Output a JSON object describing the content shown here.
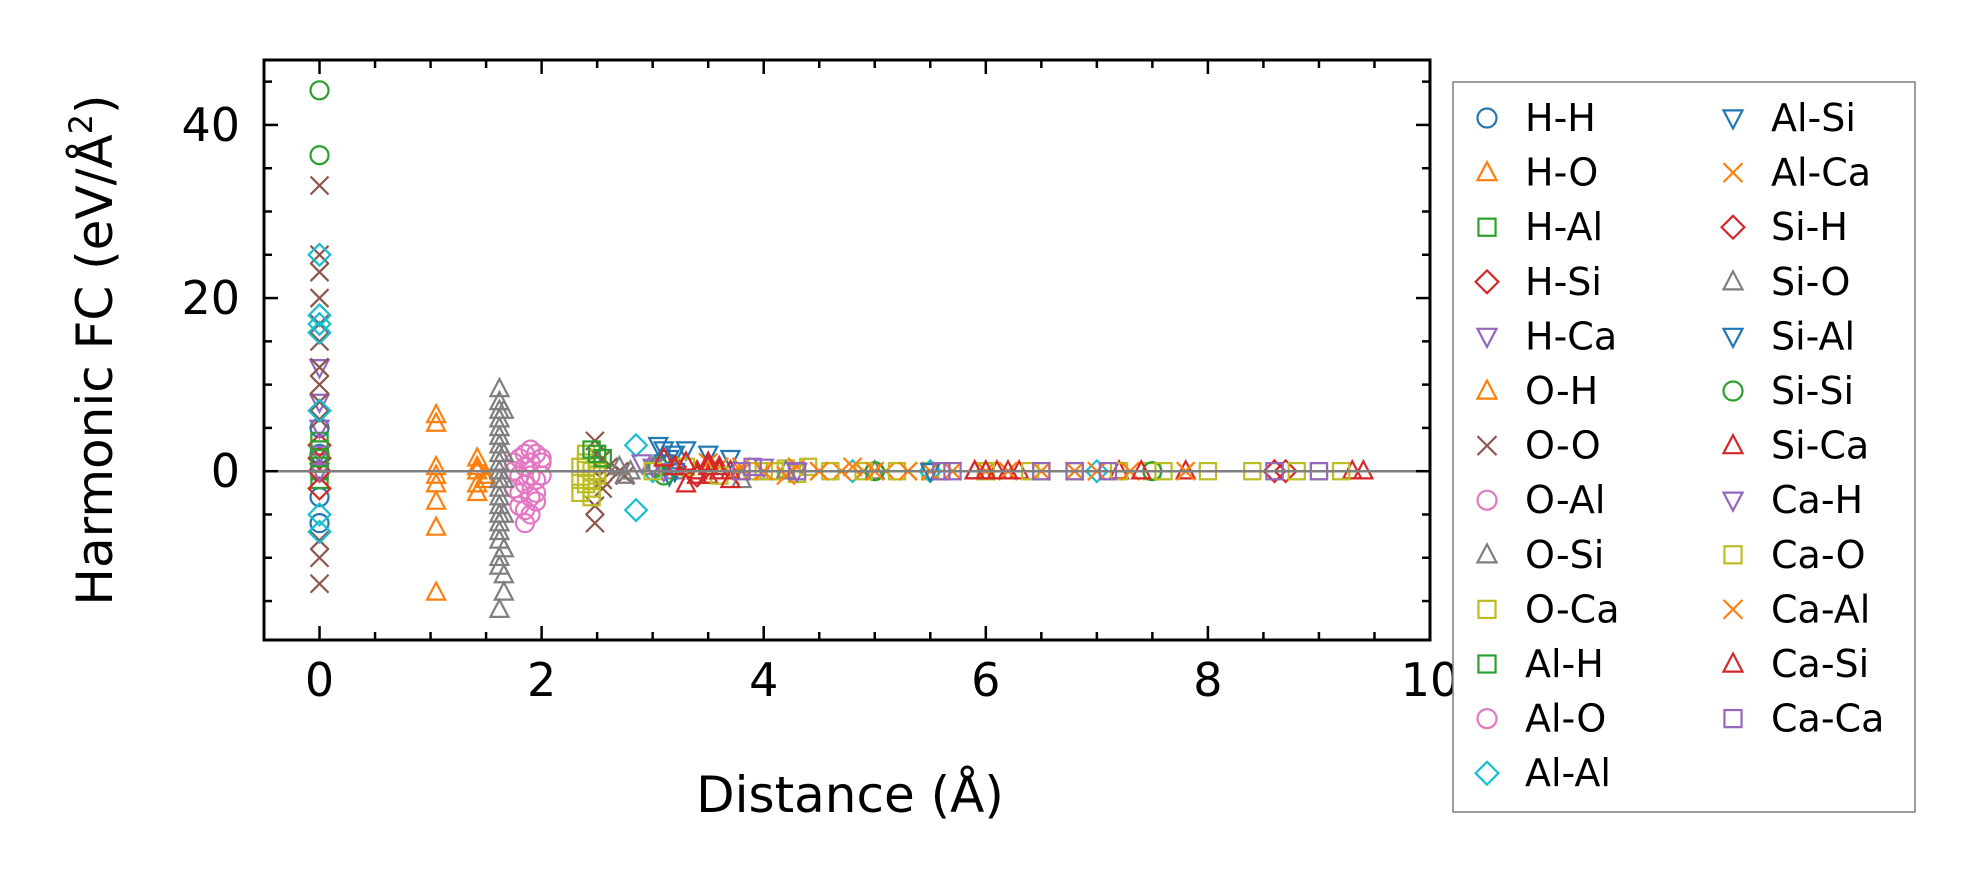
{
  "chart_data": {
    "type": "scatter",
    "xlabel": "Distance (Å)",
    "ylabel": "Harmonic FC (eV/Å²)",
    "ylabel_parts": [
      "Harmonic FC (eV/Å",
      "2",
      ")"
    ],
    "xlim": [
      -0.5,
      10
    ],
    "ylim": [
      -19.5,
      47.5
    ],
    "x_ticks": [
      0,
      2,
      4,
      6,
      8,
      10
    ],
    "x_tick_labels": [
      "0",
      "2",
      "4",
      "6",
      "8",
      "10"
    ],
    "y_ticks": [
      0,
      20,
      40
    ],
    "y_tick_labels": [
      "0",
      "20",
      "40"
    ],
    "reference_line_y": 0,
    "legend_position": "outside-right",
    "series": [
      {
        "name": "H-H",
        "marker": "circle",
        "color": "#1f77b4",
        "x": [
          0,
          0,
          0,
          0,
          0
        ],
        "y": [
          0,
          2,
          -3,
          5,
          -6
        ]
      },
      {
        "name": "H-O",
        "marker": "triangle-up",
        "color": "#ff7f0e",
        "x": [
          1.05,
          1.05,
          1.05,
          1.05,
          1.05,
          1.05,
          1.05,
          1.05
        ],
        "y": [
          6.5,
          5.5,
          0.5,
          -0.5,
          -1.5,
          -3.5,
          -6.5,
          -14
        ]
      },
      {
        "name": "H-Al",
        "marker": "square",
        "color": "#2ca02c",
        "x": [
          0,
          0,
          0,
          0,
          0
        ],
        "y": [
          1,
          2.5,
          3.5,
          -1,
          0
        ]
      },
      {
        "name": "H-Si",
        "marker": "diamond",
        "color": "#d62728",
        "x": [
          0,
          0,
          0,
          0
        ],
        "y": [
          1.5,
          -2,
          3,
          0
        ]
      },
      {
        "name": "H-Ca",
        "marker": "triangle-down",
        "color": "#9467bd",
        "x": [
          0,
          0,
          0,
          0,
          0
        ],
        "y": [
          12,
          8,
          5,
          2,
          0
        ]
      },
      {
        "name": "O-H",
        "marker": "triangle-up",
        "color": "#ff7f0e",
        "x": [
          1.42,
          1.42,
          1.42,
          1.42,
          1.42,
          1.5,
          1.5
        ],
        "y": [
          1.5,
          0,
          -1.5,
          -2.5,
          0.5,
          -0.5,
          -1
        ]
      },
      {
        "name": "O-O",
        "marker": "x",
        "color": "#8c564b",
        "x": [
          0,
          0,
          0,
          0,
          0,
          0,
          0,
          0,
          0,
          0,
          0,
          0,
          0,
          2.48,
          2.48,
          2.48,
          2.48,
          2.55,
          2.55,
          2.55,
          2.6,
          2.7,
          2.75
        ],
        "y": [
          33,
          25,
          23,
          20,
          17,
          15,
          12,
          10,
          8,
          6,
          -8,
          -10,
          -13,
          3.5,
          2,
          -4,
          -6,
          1.5,
          -1,
          -2,
          0.5,
          0,
          -0.5
        ]
      },
      {
        "name": "O-Al",
        "marker": "circle",
        "color": "#e377c2",
        "x": [
          1.75,
          1.8,
          1.85,
          1.9,
          1.95,
          2.0,
          1.75,
          1.8,
          1.85,
          1.9,
          1.95,
          2.0,
          1.75,
          1.8,
          1.85,
          1.9,
          1.95,
          1.8,
          1.85,
          1.9,
          1.85
        ],
        "y": [
          1,
          1.5,
          2,
          2.5,
          2,
          1.5,
          0,
          -0.5,
          0.5,
          1,
          -1,
          -0.5,
          -2,
          -2.5,
          -1.5,
          -3,
          -3.5,
          -4,
          -4.5,
          -5,
          -6
        ]
      },
      {
        "name": "O-Si",
        "marker": "triangle-up",
        "color": "#7f7f7f",
        "x": [
          1.62,
          1.62,
          1.62,
          1.62,
          1.62,
          1.62,
          1.62,
          1.62,
          1.62,
          1.62,
          1.62,
          1.62,
          1.62,
          1.62,
          1.62,
          1.62,
          1.62,
          1.62,
          1.62,
          1.62,
          1.62,
          1.66,
          1.66,
          1.66,
          1.66,
          1.66,
          1.66,
          1.66
        ],
        "y": [
          9.5,
          8,
          7,
          6,
          5,
          4,
          3,
          2,
          1,
          0,
          -1,
          -2,
          -3,
          -4,
          -5,
          -6,
          -7,
          -8,
          -10,
          -11,
          -16,
          7,
          2,
          -1,
          -5,
          -9,
          -12,
          -14
        ]
      },
      {
        "name": "O-Ca",
        "marker": "square",
        "color": "#bcbd22",
        "x": [
          2.35,
          2.4,
          2.45,
          2.5,
          2.35,
          2.4,
          2.45,
          2.5,
          2.35,
          2.4,
          2.45,
          2.5,
          2.4,
          2.45,
          4.0,
          4.1,
          4.2,
          4.3,
          5.5,
          6.5,
          7.5,
          8.6,
          9.0
        ],
        "y": [
          0.5,
          1,
          0,
          -0.5,
          -1,
          -1.5,
          -2,
          1.5,
          -2.5,
          0.5,
          -1,
          0,
          2,
          -3,
          0,
          0,
          0.3,
          -0.3,
          0,
          0,
          0,
          0,
          0
        ]
      },
      {
        "name": "Al-H",
        "marker": "square",
        "color": "#2ca02c",
        "x": [
          2.45,
          2.5,
          2.55,
          0,
          0
        ],
        "y": [
          2.5,
          2,
          1.5,
          1.5,
          2.5
        ]
      },
      {
        "name": "Al-O",
        "marker": "circle",
        "color": "#e377c2",
        "x": [
          1.85,
          1.9,
          2.0,
          1.95
        ],
        "y": [
          0.5,
          -0.5,
          1,
          -2.5
        ]
      },
      {
        "name": "Al-Al",
        "marker": "diamond",
        "color": "#17becf",
        "x": [
          0,
          0,
          0,
          0,
          0,
          0,
          0,
          2.85,
          2.85,
          3.0,
          4.8,
          5.5,
          7.0
        ],
        "y": [
          25,
          18,
          17,
          16,
          7,
          -5,
          -7,
          -4.5,
          3,
          0,
          0,
          0,
          0
        ]
      },
      {
        "name": "Al-Si",
        "marker": "triangle-down",
        "color": "#1f77b4",
        "x": [
          3.05,
          3.1,
          3.15,
          3.2,
          3.3,
          3.5,
          3.7
        ],
        "y": [
          3,
          2.5,
          1.5,
          2,
          2.5,
          2,
          1.5
        ]
      },
      {
        "name": "Al-Ca",
        "marker": "x",
        "color": "#ff7f0e",
        "x": [
          3.5,
          3.6,
          3.7,
          3.8,
          4.3,
          4.5,
          4.7,
          4.9,
          5.1,
          5.3,
          5.5,
          6.0,
          6.5,
          7.0
        ],
        "y": [
          1,
          0.5,
          -0.5,
          0,
          0.5,
          0,
          0,
          0,
          0,
          0,
          0,
          0,
          0,
          0
        ]
      },
      {
        "name": "Si-H",
        "marker": "diamond",
        "color": "#d62728",
        "x": [
          8.6,
          8.7,
          3.2,
          3.4
        ],
        "y": [
          0,
          0,
          0.5,
          -0.5
        ]
      },
      {
        "name": "Si-O",
        "marker": "triangle-up",
        "color": "#7f7f7f",
        "x": [
          2.7,
          2.75,
          2.8,
          3.0,
          3.2,
          3.4,
          3.8,
          4.2,
          5.0,
          6.0
        ],
        "y": [
          0.5,
          -0.5,
          0,
          0.5,
          0,
          0,
          -1,
          0,
          0,
          0
        ]
      },
      {
        "name": "Si-Al",
        "marker": "triangle-down",
        "color": "#1f77b4",
        "x": [
          3.1,
          3.15,
          3.2,
          5.5
        ],
        "y": [
          1,
          -0.5,
          0,
          0
        ]
      },
      {
        "name": "Si-Si",
        "marker": "circle",
        "color": "#2ca02c",
        "x": [
          0,
          0,
          3.05,
          3.1,
          5.0,
          7.5
        ],
        "y": [
          44,
          36.5,
          0.5,
          -0.5,
          0,
          0
        ]
      },
      {
        "name": "Si-Ca",
        "marker": "triangle-up",
        "color": "#d62728",
        "x": [
          3.2,
          3.3,
          3.4,
          3.5,
          3.6,
          3.7,
          5.9,
          6.1,
          6.3,
          7.2,
          7.8,
          9.3
        ],
        "y": [
          0.5,
          1,
          0,
          -0.5,
          0.5,
          0,
          0,
          0,
          0,
          0,
          0,
          0
        ]
      },
      {
        "name": "Ca-H",
        "marker": "triangle-down",
        "color": "#9467bd",
        "x": [
          2.9,
          3.0,
          3.1,
          4.0,
          4.3
        ],
        "y": [
          1,
          0.5,
          0,
          0.5,
          0
        ]
      },
      {
        "name": "Ca-O",
        "marker": "square",
        "color": "#bcbd22",
        "x": [
          3.0,
          3.3,
          3.6,
          3.9,
          4.1,
          4.4,
          4.6,
          4.9,
          5.2,
          5.6,
          6.0,
          6.4,
          6.8,
          7.2,
          7.6,
          8.0,
          8.4,
          8.8,
          9.2
        ],
        "y": [
          0,
          0.5,
          -0.5,
          0,
          0,
          0.5,
          0,
          0,
          0,
          0,
          0,
          0,
          0,
          0,
          0,
          0,
          0,
          0,
          0
        ]
      },
      {
        "name": "Ca-Al",
        "marker": "x",
        "color": "#ff7f0e",
        "x": [
          3.8,
          4.0,
          4.2,
          4.5,
          4.8,
          5.0,
          5.3,
          5.7,
          6.2,
          6.8,
          7.3,
          7.8
        ],
        "y": [
          0.5,
          0,
          -0.5,
          0,
          0.5,
          0,
          0,
          0,
          0,
          0,
          0,
          0
        ]
      },
      {
        "name": "Ca-Si",
        "marker": "triangle-up",
        "color": "#d62728",
        "x": [
          3.1,
          3.2,
          3.3,
          3.4,
          3.5,
          3.6,
          3.7,
          3.3,
          3.5,
          5.9,
          6.0,
          6.2,
          7.4,
          9.4
        ],
        "y": [
          1.5,
          0.5,
          1,
          -0.5,
          0.5,
          0,
          -1,
          -1.5,
          1,
          0,
          0,
          0,
          0,
          0
        ]
      },
      {
        "name": "Ca-Ca",
        "marker": "square",
        "color": "#9467bd",
        "x": [
          3.8,
          3.9,
          4.3,
          5.6,
          5.7,
          6.5,
          6.8,
          7.1,
          8.6,
          9.0
        ],
        "y": [
          0,
          0.5,
          0,
          0,
          0,
          0,
          0,
          0,
          0,
          0
        ]
      }
    ]
  }
}
